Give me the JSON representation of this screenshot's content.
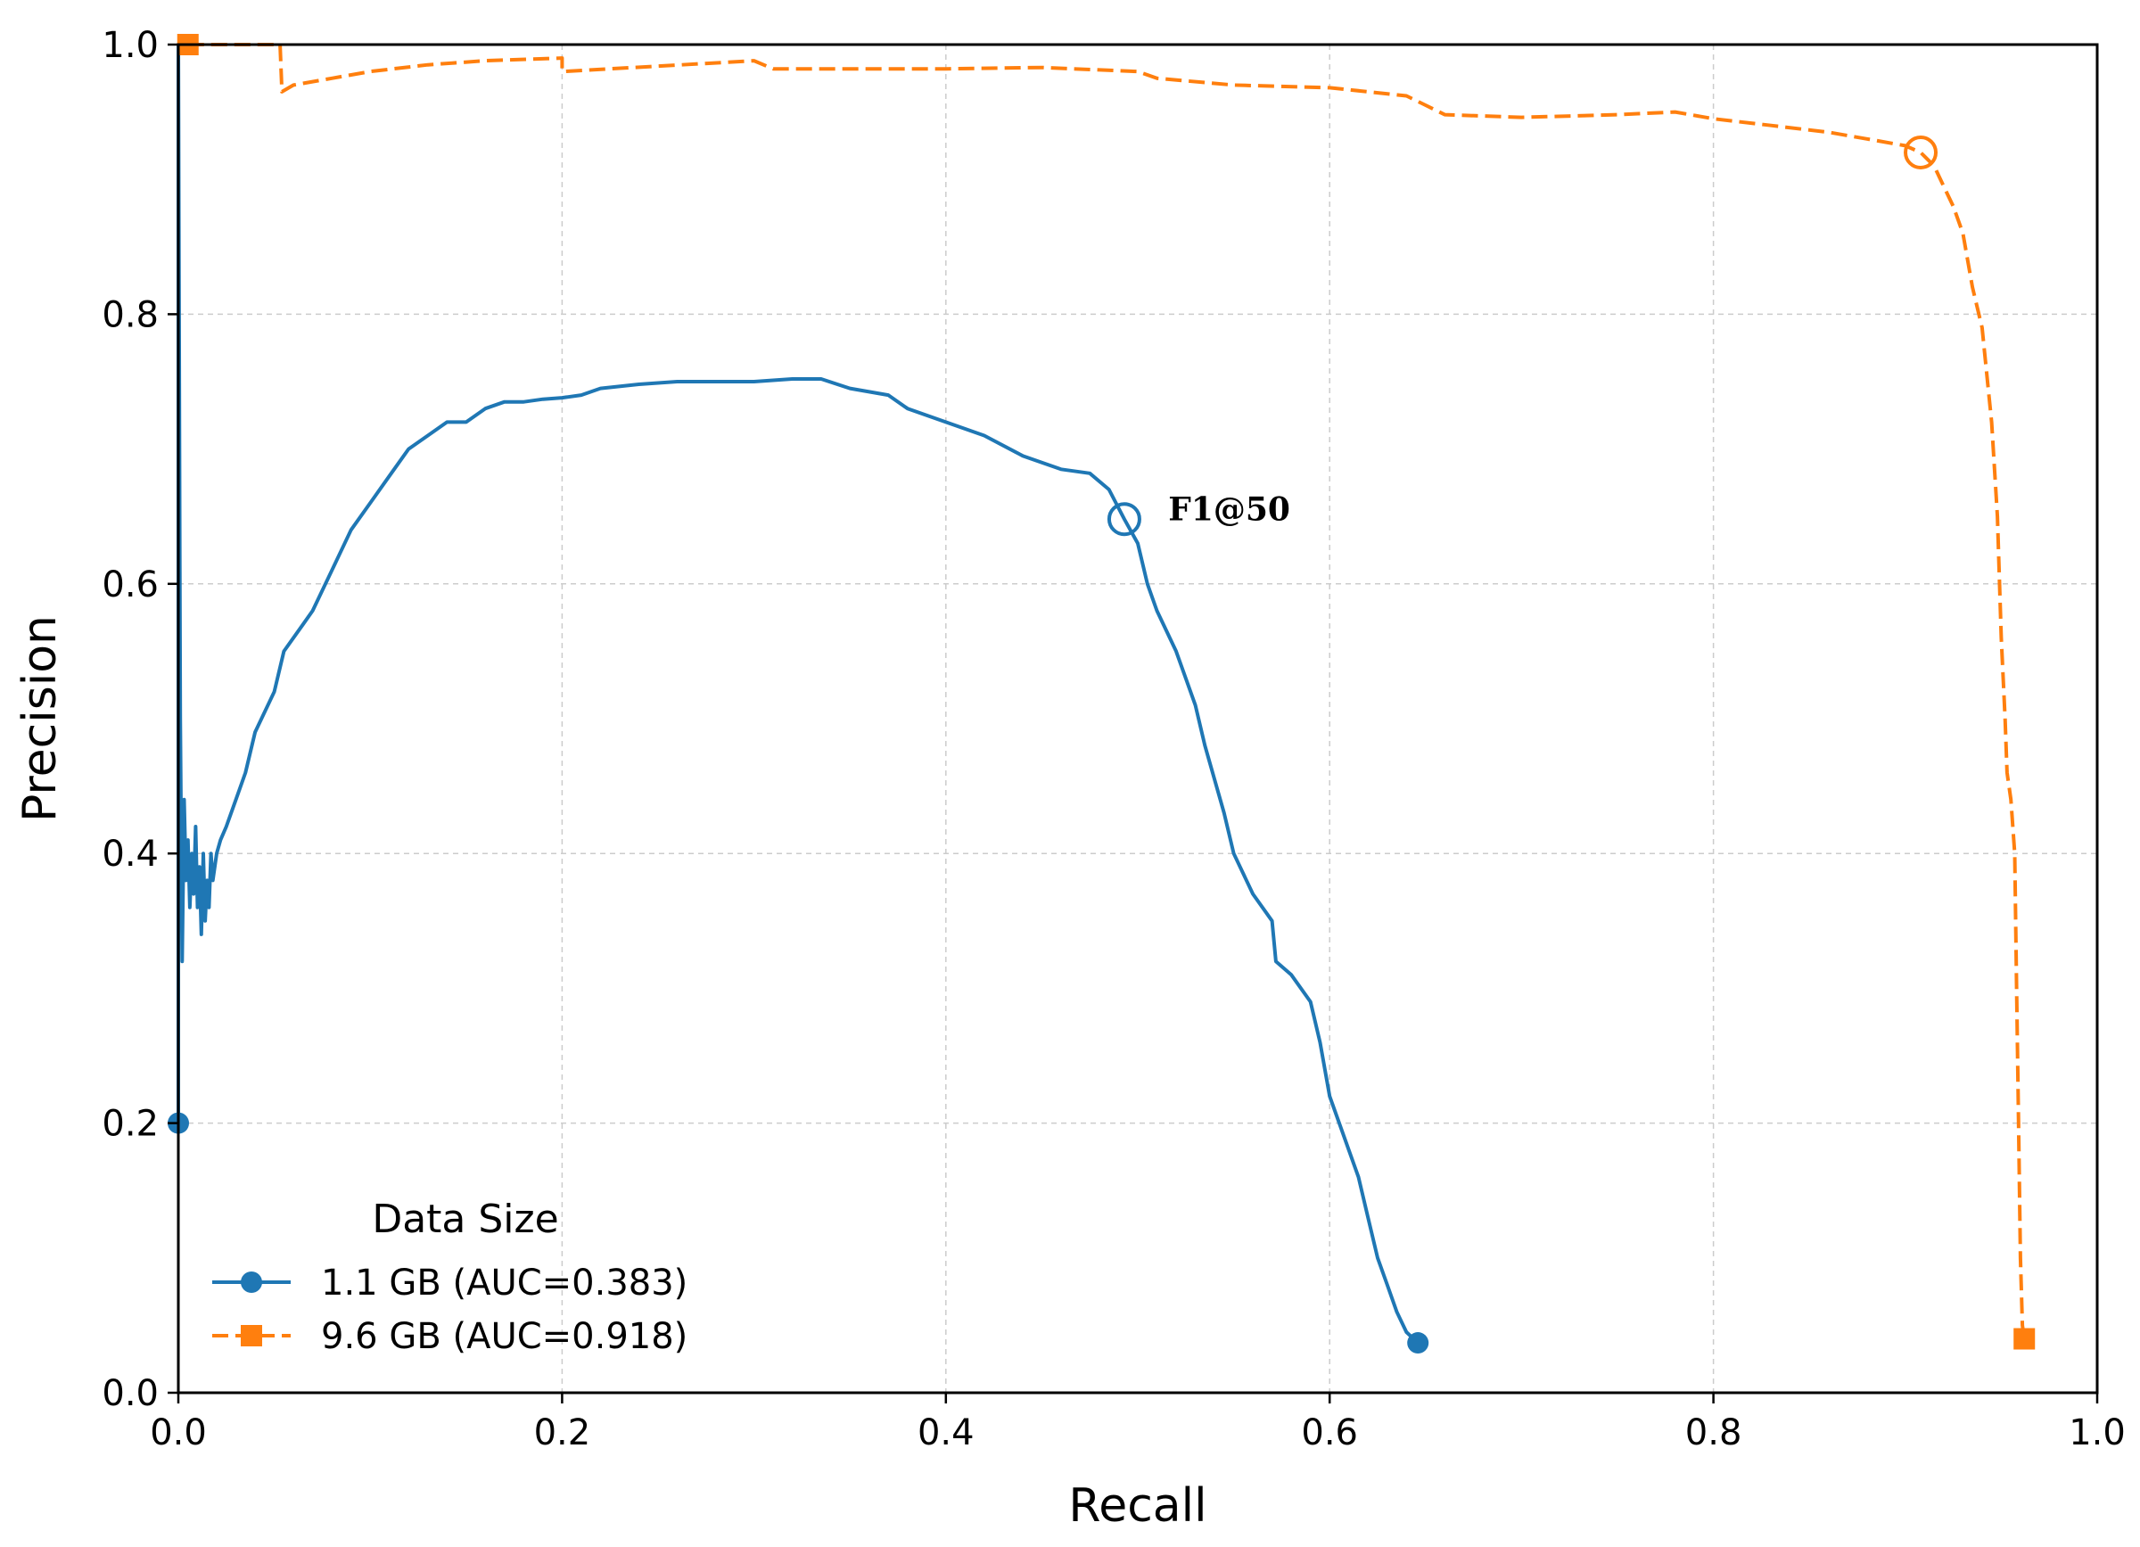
{
  "chart_data": {
    "type": "line",
    "title": "",
    "xlabel": "Recall",
    "ylabel": "Precision",
    "xlim": [
      0.0,
      1.0
    ],
    "ylim": [
      0.0,
      1.0
    ],
    "xticks": [
      "0.0",
      "0.2",
      "0.4",
      "0.6",
      "0.8",
      "1.0"
    ],
    "yticks": [
      "0.0",
      "0.2",
      "0.4",
      "0.6",
      "0.8",
      "1.0"
    ],
    "grid": true,
    "legend": {
      "title": "Data Size",
      "placement": "lower-left"
    },
    "annotations": [
      {
        "text": "F1@50",
        "x": 0.515,
        "y": 0.655
      }
    ],
    "series": [
      {
        "name": "1.1 GB (AUC=0.383)",
        "color": "#1f77b4",
        "linestyle": "solid",
        "end_marker": "circle",
        "f1_point": [
          0.493,
          0.648
        ],
        "x": [
          0.0,
          0.0,
          0.001,
          0.002,
          0.003,
          0.004,
          0.005,
          0.006,
          0.007,
          0.008,
          0.009,
          0.01,
          0.011,
          0.012,
          0.013,
          0.014,
          0.015,
          0.016,
          0.017,
          0.018,
          0.02,
          0.022,
          0.025,
          0.03,
          0.035,
          0.04,
          0.05,
          0.055,
          0.065,
          0.07,
          0.08,
          0.09,
          0.1,
          0.11,
          0.12,
          0.13,
          0.14,
          0.15,
          0.16,
          0.17,
          0.18,
          0.19,
          0.2,
          0.21,
          0.22,
          0.24,
          0.26,
          0.28,
          0.3,
          0.32,
          0.335,
          0.35,
          0.37,
          0.38,
          0.4,
          0.42,
          0.44,
          0.46,
          0.475,
          0.485,
          0.493,
          0.5,
          0.505,
          0.51,
          0.52,
          0.53,
          0.535,
          0.545,
          0.55,
          0.56,
          0.57,
          0.572,
          0.58,
          0.59,
          0.595,
          0.6,
          0.61,
          0.615,
          0.62,
          0.625,
          0.63,
          0.635,
          0.64,
          0.646
        ],
        "y": [
          0.2,
          1.0,
          0.5,
          0.32,
          0.44,
          0.38,
          0.41,
          0.36,
          0.4,
          0.37,
          0.42,
          0.36,
          0.39,
          0.34,
          0.4,
          0.35,
          0.38,
          0.36,
          0.4,
          0.38,
          0.4,
          0.41,
          0.42,
          0.44,
          0.46,
          0.49,
          0.52,
          0.55,
          0.57,
          0.58,
          0.61,
          0.64,
          0.66,
          0.68,
          0.7,
          0.71,
          0.72,
          0.72,
          0.73,
          0.735,
          0.735,
          0.737,
          0.738,
          0.74,
          0.745,
          0.748,
          0.75,
          0.75,
          0.75,
          0.752,
          0.752,
          0.745,
          0.74,
          0.73,
          0.72,
          0.71,
          0.695,
          0.685,
          0.682,
          0.67,
          0.648,
          0.63,
          0.6,
          0.58,
          0.55,
          0.51,
          0.48,
          0.43,
          0.4,
          0.37,
          0.35,
          0.32,
          0.31,
          0.29,
          0.26,
          0.22,
          0.18,
          0.16,
          0.13,
          0.1,
          0.08,
          0.06,
          0.045,
          0.037
        ]
      },
      {
        "name": "9.6 GB (AUC=0.918)",
        "color": "#ff7f0e",
        "linestyle": "dashed",
        "end_marker": "square",
        "f1_point": [
          0.908,
          0.92
        ],
        "x": [
          0.005,
          0.053,
          0.054,
          0.06,
          0.08,
          0.1,
          0.13,
          0.16,
          0.2,
          0.2,
          0.25,
          0.3,
          0.31,
          0.35,
          0.4,
          0.45,
          0.5,
          0.51,
          0.55,
          0.6,
          0.62,
          0.64,
          0.65,
          0.66,
          0.7,
          0.75,
          0.78,
          0.8,
          0.83,
          0.86,
          0.88,
          0.9,
          0.908,
          0.915,
          0.92,
          0.925,
          0.93,
          0.935,
          0.94,
          0.945,
          0.948,
          0.95,
          0.952,
          0.953,
          0.955,
          0.957,
          0.958,
          0.959,
          0.96,
          0.961,
          0.962
        ],
        "y": [
          1.0,
          1.0,
          0.965,
          0.97,
          0.975,
          0.98,
          0.985,
          0.988,
          0.99,
          0.98,
          0.984,
          0.988,
          0.982,
          0.982,
          0.982,
          0.983,
          0.98,
          0.975,
          0.97,
          0.968,
          0.965,
          0.962,
          0.955,
          0.948,
          0.946,
          0.948,
          0.95,
          0.945,
          0.94,
          0.935,
          0.93,
          0.925,
          0.92,
          0.91,
          0.895,
          0.88,
          0.86,
          0.82,
          0.79,
          0.72,
          0.65,
          0.56,
          0.5,
          0.46,
          0.44,
          0.4,
          0.3,
          0.2,
          0.1,
          0.05,
          0.04
        ]
      }
    ]
  }
}
